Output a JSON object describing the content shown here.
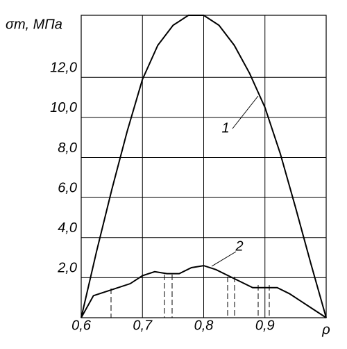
{
  "chart_data": {
    "type": "line",
    "y_label": "σт, МПа",
    "x_label": "ρ",
    "xlim": [
      0.6,
      1.0
    ],
    "ylim": [
      0,
      15.1
    ],
    "xticks": [
      {
        "value": 0.6,
        "label": "0,6"
      },
      {
        "value": 0.7,
        "label": "0,7"
      },
      {
        "value": 0.8,
        "label": "0,8"
      },
      {
        "value": 0.9,
        "label": "0,9"
      }
    ],
    "yticks": [
      {
        "value": 2,
        "label": "2,0"
      },
      {
        "value": 4,
        "label": "4,0"
      },
      {
        "value": 6,
        "label": "6,0"
      },
      {
        "value": 8,
        "label": "8,0"
      },
      {
        "value": 10,
        "label": "10,0"
      },
      {
        "value": 12,
        "label": "12,0"
      }
    ],
    "grid": true,
    "series": [
      {
        "color": "#000000",
        "x": [
          0.6,
          0.625,
          0.65,
          0.675,
          0.7,
          0.725,
          0.75,
          0.775,
          0.8,
          0.825,
          0.85,
          0.875,
          0.9,
          0.925,
          0.95,
          0.975,
          1.0
        ],
        "values": [
          0,
          3.3,
          6.4,
          9.3,
          11.9,
          13.6,
          14.6,
          15.1,
          15.1,
          14.6,
          13.6,
          12.2,
          10.5,
          8.2,
          5.5,
          2.7,
          0
        ]
      },
      {
        "color": "#000000",
        "x": [
          0.6,
          0.62,
          0.65,
          0.68,
          0.7,
          0.72,
          0.74,
          0.76,
          0.78,
          0.8,
          0.82,
          0.84,
          0.86,
          0.88,
          0.9,
          0.92,
          0.94,
          0.96,
          0.98,
          1.0
        ],
        "values": [
          0,
          1.1,
          1.4,
          1.7,
          2.1,
          2.3,
          2.2,
          2.2,
          2.5,
          2.6,
          2.4,
          2.1,
          1.8,
          1.5,
          1.5,
          1.5,
          1.2,
          0.8,
          0.4,
          0
        ]
      }
    ],
    "annotations": [
      "1",
      "2"
    ]
  }
}
